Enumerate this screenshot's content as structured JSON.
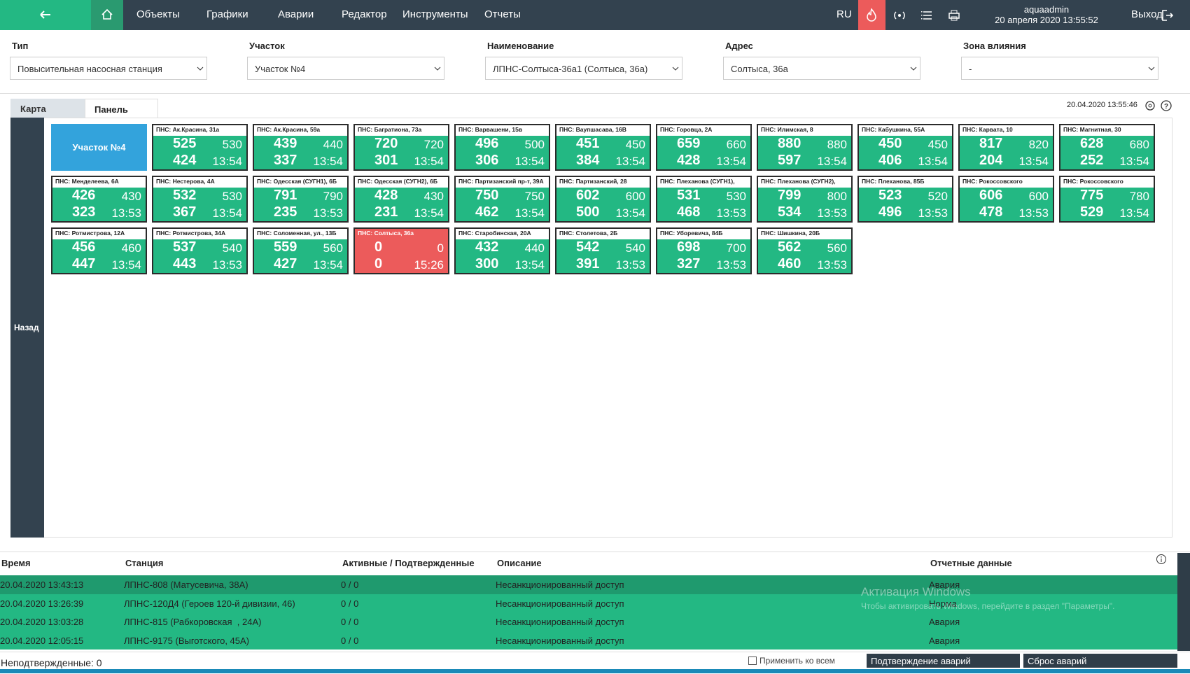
{
  "nav": {
    "items": [
      "Объекты",
      "Графики",
      "Аварии",
      "Редактор",
      "Инструменты",
      "Отчеты"
    ],
    "lang": "RU",
    "user": "aquaadmin",
    "datetime": "20 апреля 2020 13:55:52",
    "logout": "Выход"
  },
  "filters": [
    {
      "label": "Тип",
      "value": "Повысительная насосная станция"
    },
    {
      "label": "Участок",
      "value": "Участок №4"
    },
    {
      "label": "Наименование",
      "value": "ЛПНС-Солтыса-36а1 (Солтыса, 36а)"
    },
    {
      "label": "Адрес",
      "value": "Солтыса, 36а"
    },
    {
      "label": "Зона влияния",
      "value": "-"
    }
  ],
  "tabs": [
    "Карта",
    "Панель"
  ],
  "timestamp": "20.04.2020 13:55:46",
  "back": "Назад",
  "panel": {
    "section": {
      "label": "Участок №4",
      "color": "#33a3dc"
    },
    "rows": [
      [
        {
          "name": "ПНС: Ак.Красина, 31а",
          "v": [
            525,
            530,
            424,
            "13:54"
          ],
          "color": "#23b883"
        },
        {
          "name": "ПНС: Ак.Красина, 59а",
          "v": [
            439,
            440,
            337,
            "13:54"
          ],
          "color": "#23b883"
        },
        {
          "name": "ПНС: Багратиона, 73а",
          "v": [
            720,
            720,
            301,
            "13:54"
          ],
          "color": "#23b883"
        },
        {
          "name": "ПНС: Варвашени, 15в",
          "v": [
            496,
            500,
            306,
            "13:54"
          ],
          "color": "#23b883"
        },
        {
          "name": "ПНС: Ваупшасава, 16В",
          "v": [
            451,
            450,
            384,
            "13:54"
          ],
          "color": "#23b883"
        },
        {
          "name": "ПНС: Горовца, 2А",
          "v": [
            659,
            660,
            428,
            "13:54"
          ],
          "color": "#23b883"
        },
        {
          "name": "ПНС: Илимская, 8",
          "v": [
            880,
            880,
            597,
            "13:54"
          ],
          "color": "#23b883"
        },
        {
          "name": "ПНС: Кабушкина, 55А",
          "v": [
            450,
            450,
            406,
            "13:54"
          ],
          "color": "#23b883"
        },
        {
          "name": "ПНС: Карвата, 10",
          "v": [
            817,
            820,
            204,
            "13:54"
          ],
          "color": "#23b883"
        },
        {
          "name": "ПНС: Магнитная, 30",
          "v": [
            628,
            680,
            252,
            "13:54"
          ],
          "color": "#23b883"
        }
      ],
      [
        {
          "name": "ПНС: Менделеева, 6А",
          "v": [
            426,
            430,
            323,
            "13:53"
          ],
          "color": "#23b883"
        },
        {
          "name": "ПНС: Нестерова, 4А",
          "v": [
            532,
            530,
            367,
            "13:54"
          ],
          "color": "#23b883"
        },
        {
          "name": "ПНС: Одесская (СУГН1), 6Б",
          "v": [
            791,
            790,
            235,
            "13:53"
          ],
          "color": "#23b883"
        },
        {
          "name": "ПНС: Одесская (СУГН2), 6Б",
          "v": [
            428,
            430,
            231,
            "13:54"
          ],
          "color": "#23b883"
        },
        {
          "name": "ПНС: Партизанский пр-т, 39А",
          "v": [
            750,
            750,
            462,
            "13:54"
          ],
          "color": "#23b883"
        },
        {
          "name": "ПНС: Партизанский, 28",
          "v": [
            602,
            600,
            500,
            "13:54"
          ],
          "color": "#23b883"
        },
        {
          "name": "ПНС: Плеханова (СУГН1),",
          "v": [
            531,
            530,
            468,
            "13:53"
          ],
          "color": "#23b883"
        },
        {
          "name": "ПНС: Плеханова (СУГН2),",
          "v": [
            799,
            800,
            534,
            "13:53"
          ],
          "color": "#23b883"
        },
        {
          "name": "ПНС: Плеханова, 85Б",
          "v": [
            523,
            520,
            496,
            "13:53"
          ],
          "color": "#23b883"
        },
        {
          "name": "ПНС: Рокоссовского",
          "v": [
            606,
            600,
            478,
            "13:53"
          ],
          "color": "#23b883"
        },
        {
          "name": "ПНС: Рокоссовского",
          "v": [
            775,
            780,
            529,
            "13:54"
          ],
          "color": "#23b883"
        }
      ],
      [
        {
          "name": "ПНС: Ротмистрова, 12А",
          "v": [
            456,
            460,
            447,
            "13:54"
          ],
          "color": "#23b883"
        },
        {
          "name": "ПНС: Ротмистрова, 34А",
          "v": [
            537,
            540,
            443,
            "13:53"
          ],
          "color": "#23b883"
        },
        {
          "name": "ПНС: Соломенная, ул., 13Б",
          "v": [
            559,
            560,
            427,
            "13:54"
          ],
          "color": "#23b883"
        },
        {
          "name": "ПНС: Солтыса, 36а",
          "v": [
            0,
            0,
            0,
            "15:26"
          ],
          "color": "#ec5b5b"
        },
        {
          "name": "ПНС: Старобинская, 20А",
          "v": [
            432,
            440,
            300,
            "13:54"
          ],
          "color": "#23b883"
        },
        {
          "name": "ПНС: Столетова, 2Б",
          "v": [
            542,
            540,
            391,
            "13:53"
          ],
          "color": "#23b883"
        },
        {
          "name": "ПНС: Уборевича, 84Б",
          "v": [
            698,
            700,
            327,
            "13:53"
          ],
          "color": "#23b883"
        },
        {
          "name": "ПНС: Шишкина, 20Б",
          "v": [
            562,
            560,
            460,
            "13:53"
          ],
          "color": "#23b883"
        }
      ]
    ]
  },
  "table": {
    "columns": [
      "Время",
      "Станция",
      "Активные / Подтвержденные",
      "Описание",
      "Отчетные данные"
    ],
    "rows": [
      [
        "20.04.2020 13:43:13",
        "ЛПНС-808 (Матусевича, 38А)",
        "0 / 0",
        "Несанкционированный доступ",
        "Авария"
      ],
      [
        "20.04.2020 13:26:39",
        "ЛПНС-120Д4 (Героев 120-й дивизии, 46)",
        "0 / 0",
        "Несанкционированный доступ",
        "Норма"
      ],
      [
        "20.04.2020 13:03:28",
        "ЛПНС-815 (Рабкоровская  , 24А)",
        "0 / 0",
        "Несанкционированный доступ",
        "Авария"
      ],
      [
        "20.04.2020 12:05:15",
        "ЛПНС-9175 (Выготского, 45А)",
        "0 / 0",
        "Несанкционированный доступ",
        "Авария"
      ]
    ]
  },
  "footer": {
    "unconfirmed": "Неподтвержденные: 0",
    "apply_all": "Применить ко всем",
    "confirm": "Подтверждение аварий",
    "reset": "Сброс аварий"
  },
  "watermark": {
    "title": "Активация Windows",
    "text": "Чтобы активировать Windows, перейдите в раздел \"Параметры\"."
  }
}
